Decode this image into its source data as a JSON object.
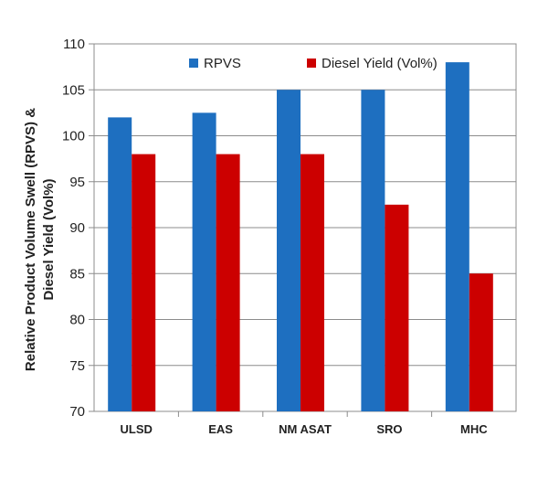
{
  "chart_data": {
    "type": "bar",
    "categories": [
      "ULSD",
      "EAS",
      "NM ASAT",
      "SRO",
      "MHC"
    ],
    "series": [
      {
        "name": "RPVS",
        "values": [
          102,
          102.5,
          105,
          105,
          108
        ],
        "color": "#1E6FC0"
      },
      {
        "name": "Diesel Yield (Vol%)",
        "values": [
          98,
          98,
          98,
          92.5,
          85
        ],
        "color": "#CC0000"
      }
    ],
    "ylabel_line1": "Relative Product Volume Swell (RPVS) &",
    "ylabel_line2": "Diesel Yield (Vol%)",
    "xlabel": "",
    "ylim": [
      70,
      110
    ],
    "yticks": [
      70,
      75,
      80,
      85,
      90,
      95,
      100,
      105,
      110
    ],
    "grid": true,
    "legend_position": "top"
  }
}
